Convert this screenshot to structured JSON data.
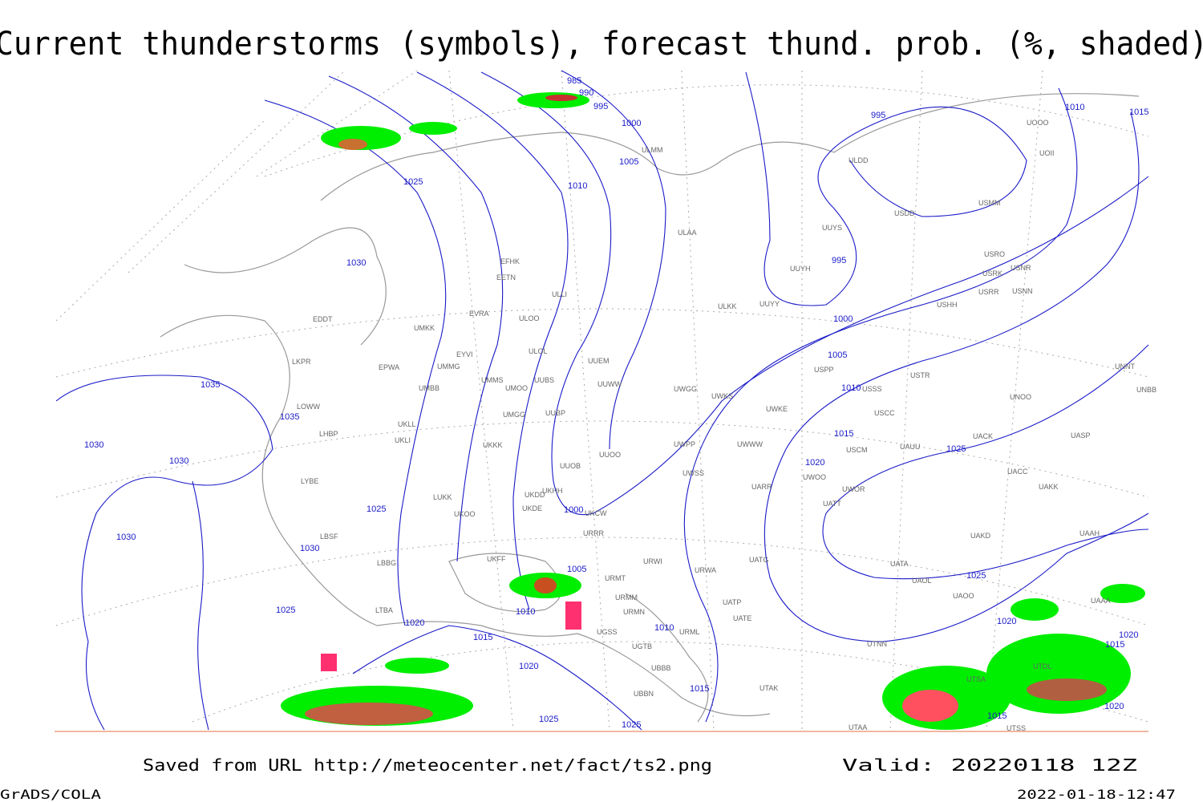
{
  "title": "Current thunderstorms (symbols), forecast thund. prob. (%, shaded)",
  "footer": {
    "saved": "Saved from URL http://meteocenter.net/fact/ts2.png",
    "valid": "Valid: 20220118 12Z",
    "software": "GrADS/COLA",
    "timestamp": "2022-01-18-12:47"
  },
  "isobar_labels": [
    985,
    990,
    995,
    1000,
    1005,
    1010,
    1025,
    1030,
    1035,
    1035,
    1030,
    1030,
    1025,
    1030,
    1030,
    1025,
    1020,
    1010,
    1015,
    1005,
    1000,
    1020,
    1025,
    1025,
    1010,
    1015,
    995,
    1010,
    1015,
    995,
    1000,
    1005,
    1010,
    1015,
    1020,
    1025,
    1025,
    1020,
    1020,
    1015,
    1015,
    1020
  ],
  "stations": [
    "ULMM",
    "ULAA",
    "ULDD",
    "USDD",
    "USMM",
    "UUYS",
    "UUYH",
    "ULKK",
    "UUYY",
    "EFHK",
    "EETN",
    "EVRA",
    "ULOO",
    "ULLI",
    "UMKK",
    "EDDT",
    "ULOL",
    "UUEM",
    "EYVI",
    "UMMG",
    "EPWA",
    "LKPR",
    "UMMS",
    "UMOO",
    "UUBS",
    "UUWW",
    "UMBB",
    "UWGG",
    "UWKS",
    "UWKE",
    "UUBP",
    "UMGG",
    "UKLL",
    "UKLI",
    "LOWW",
    "LHBP",
    "UKKK",
    "UUOO",
    "UWPP",
    "UUOB",
    "UWSS",
    "UKHH",
    "UKDD",
    "UKDE",
    "LUKK",
    "UKOO",
    "UKCW",
    "UWWW",
    "UARR",
    "URRR",
    "LYBE",
    "LBSF",
    "UKFF",
    "LBBG",
    "URMT",
    "URWI",
    "URMM",
    "URMN",
    "URWA",
    "UATG",
    "UATP",
    "UATE",
    "URML",
    "UGSS",
    "UGTB",
    "UBBB",
    "UTAK",
    "UBBN",
    "LTBA",
    "USSS",
    "USCC",
    "UAUU",
    "USCM",
    "UWOO",
    "UWOR",
    "UATT",
    "UACK",
    "UACC",
    "UAKK",
    "UAKD",
    "UATA",
    "UAOL",
    "UAOO",
    "UTNN",
    "UASP",
    "UNOO",
    "UNNT",
    "UNBB",
    "USTR",
    "USPP",
    "USHH",
    "USRR",
    "USNN",
    "USRK",
    "USRO",
    "USNR",
    "UOOO",
    "UOII",
    "UTAA",
    "UTSS",
    "UTDL",
    "UTSA",
    "UAAA",
    "UAAH"
  ]
}
